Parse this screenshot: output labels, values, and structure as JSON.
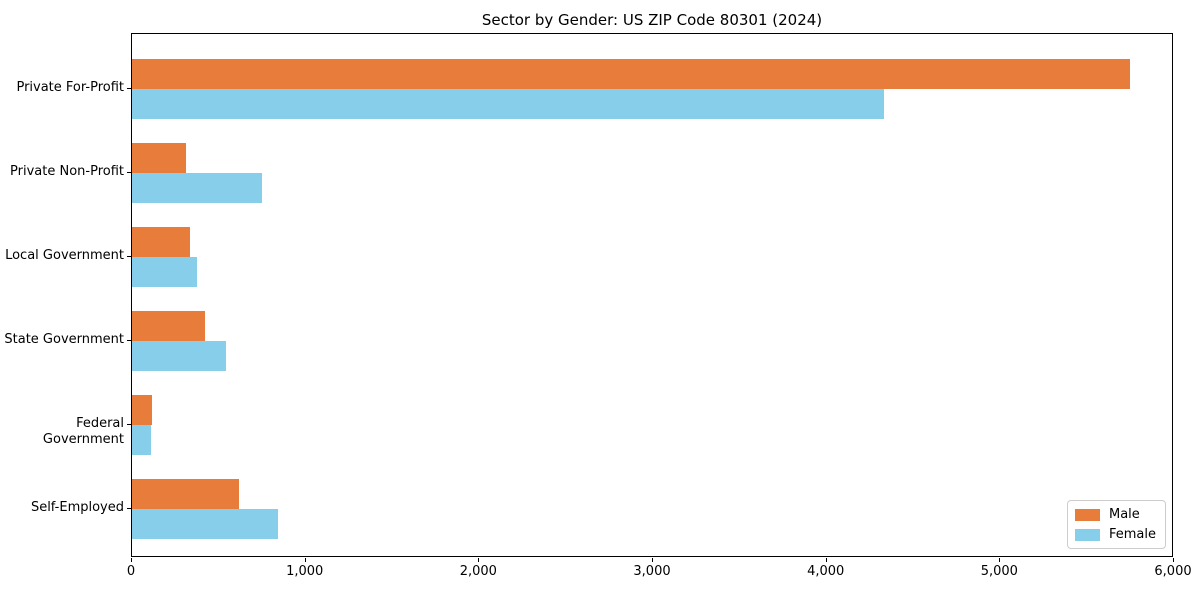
{
  "title": "Sector by Gender: US ZIP Code 80301 (2024)",
  "chart_data": {
    "type": "bar",
    "orientation": "horizontal",
    "title": "Sector by Gender: US ZIP Code 80301 (2024)",
    "categories": [
      "Private For-Profit",
      "Private Non-Profit",
      "Local Government",
      "State Government",
      "Federal Government",
      "Self-Employed"
    ],
    "series": [
      {
        "name": "Male",
        "color": "#e87d3b",
        "values": [
          5745,
          310,
          335,
          420,
          115,
          615
        ]
      },
      {
        "name": "Female",
        "color": "#87ceeb",
        "values": [
          4330,
          750,
          375,
          540,
          110,
          840
        ]
      }
    ],
    "xlabel": "",
    "ylabel": "",
    "xlim": [
      0,
      6000
    ],
    "xticks": [
      0,
      1000,
      2000,
      3000,
      4000,
      5000,
      6000
    ],
    "xtick_labels": [
      "0",
      "1,000",
      "2,000",
      "3,000",
      "4,000",
      "5,000",
      "6,000"
    ],
    "grid": false,
    "legend": {
      "position": "lower right",
      "entries": [
        "Male",
        "Female"
      ]
    },
    "colors": {
      "axis": "#000000",
      "background": "#ffffff",
      "legend_border": "#cccccc"
    }
  }
}
